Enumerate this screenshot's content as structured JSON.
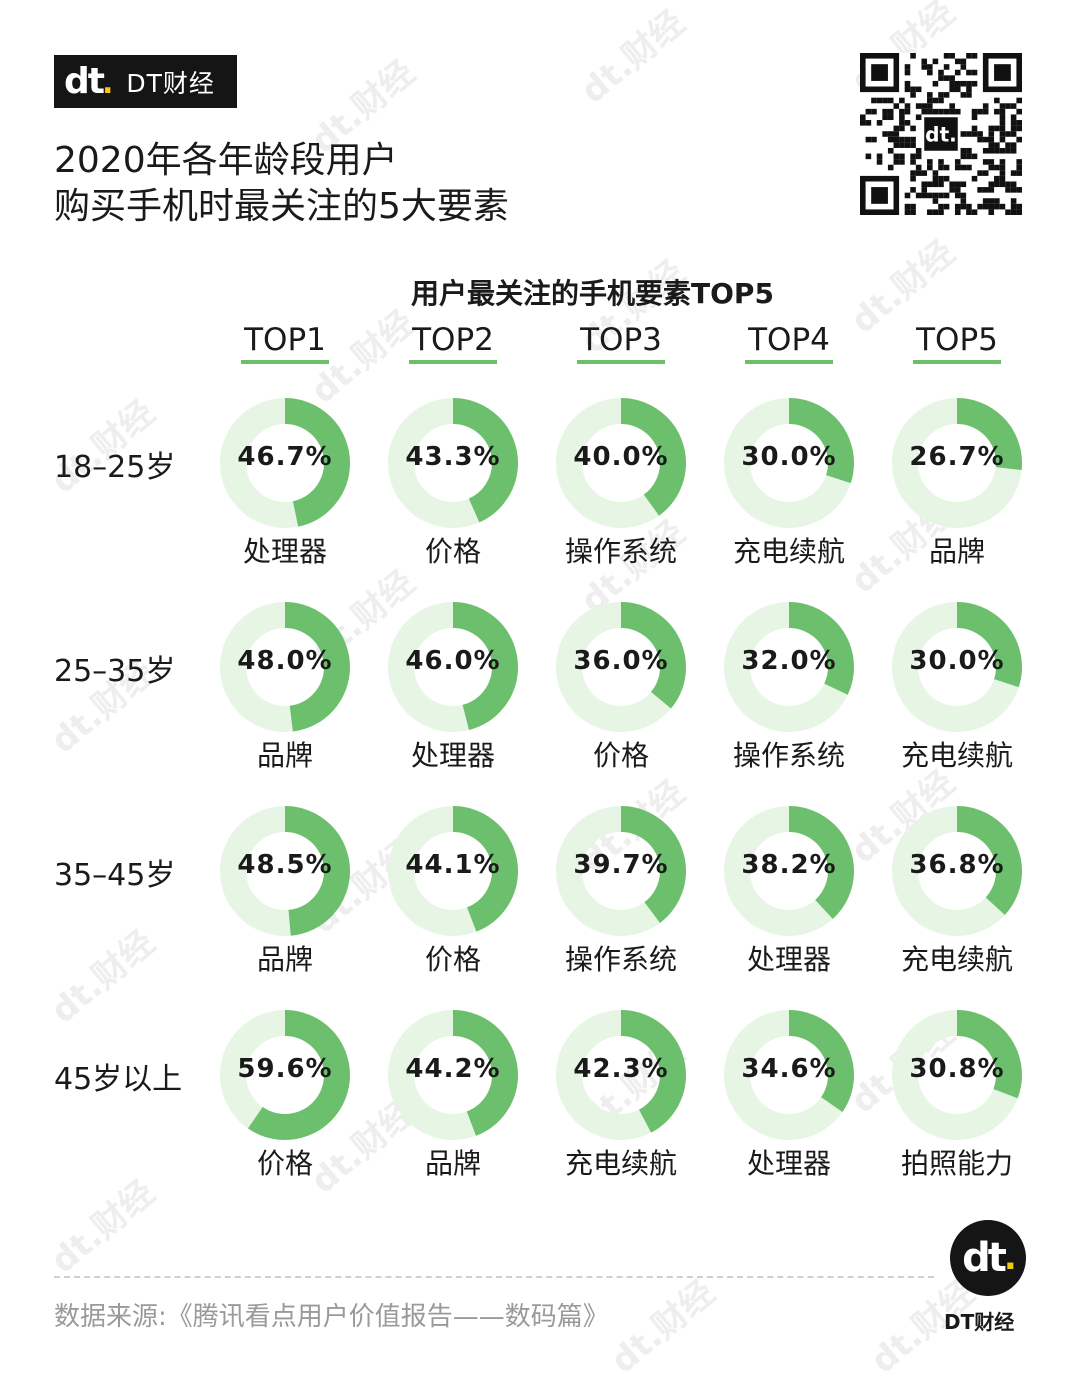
{
  "brand": {
    "logo": "dt.",
    "name": "DT财经"
  },
  "title": [
    "2020年各年龄段用户",
    "购买手机时最关注的5大要素"
  ],
  "subtitle": "用户最关注的手机要素TOP5",
  "source": "数据来源:《腾讯看点用户价值报告——数码篇》",
  "footer_logo": {
    "mark": "dt.",
    "caption": "DT财经"
  },
  "watermark": "dt.财经",
  "colors": {
    "accent": "#6cbf6c",
    "track": "#e6f5e4",
    "brand_dark": "#151515",
    "brand_yellow": "#f2c811"
  },
  "chart_data": {
    "type": "donut-grid",
    "title": "用户最关注的手机要素TOP5",
    "columns": [
      "TOP1",
      "TOP2",
      "TOP3",
      "TOP4",
      "TOP5"
    ],
    "rows": [
      {
        "age": "18–25岁",
        "items": [
          {
            "factor": "处理器",
            "value": 46.7,
            "label": "46.7%"
          },
          {
            "factor": "价格",
            "value": 43.3,
            "label": "43.3%"
          },
          {
            "factor": "操作系统",
            "value": 40.0,
            "label": "40.0%"
          },
          {
            "factor": "充电续航",
            "value": 30.0,
            "label": "30.0%"
          },
          {
            "factor": "品牌",
            "value": 26.7,
            "label": "26.7%"
          }
        ]
      },
      {
        "age": "25–35岁",
        "items": [
          {
            "factor": "品牌",
            "value": 48.0,
            "label": "48.0%"
          },
          {
            "factor": "处理器",
            "value": 46.0,
            "label": "46.0%"
          },
          {
            "factor": "价格",
            "value": 36.0,
            "label": "36.0%"
          },
          {
            "factor": "操作系统",
            "value": 32.0,
            "label": "32.0%"
          },
          {
            "factor": "充电续航",
            "value": 30.0,
            "label": "30.0%"
          }
        ]
      },
      {
        "age": "35–45岁",
        "items": [
          {
            "factor": "品牌",
            "value": 48.5,
            "label": "48.5%"
          },
          {
            "factor": "价格",
            "value": 44.1,
            "label": "44.1%"
          },
          {
            "factor": "操作系统",
            "value": 39.7,
            "label": "39.7%"
          },
          {
            "factor": "处理器",
            "value": 38.2,
            "label": "38.2%"
          },
          {
            "factor": "充电续航",
            "value": 36.8,
            "label": "36.8%"
          }
        ]
      },
      {
        "age": "45岁以上",
        "items": [
          {
            "factor": "价格",
            "value": 59.6,
            "label": "59.6%"
          },
          {
            "factor": "品牌",
            "value": 44.2,
            "label": "44.2%"
          },
          {
            "factor": "充电续航",
            "value": 42.3,
            "label": "42.3%"
          },
          {
            "factor": "处理器",
            "value": 34.6,
            "label": "34.6%"
          },
          {
            "factor": "拍照能力",
            "value": 30.8,
            "label": "30.8%"
          }
        ]
      }
    ]
  }
}
